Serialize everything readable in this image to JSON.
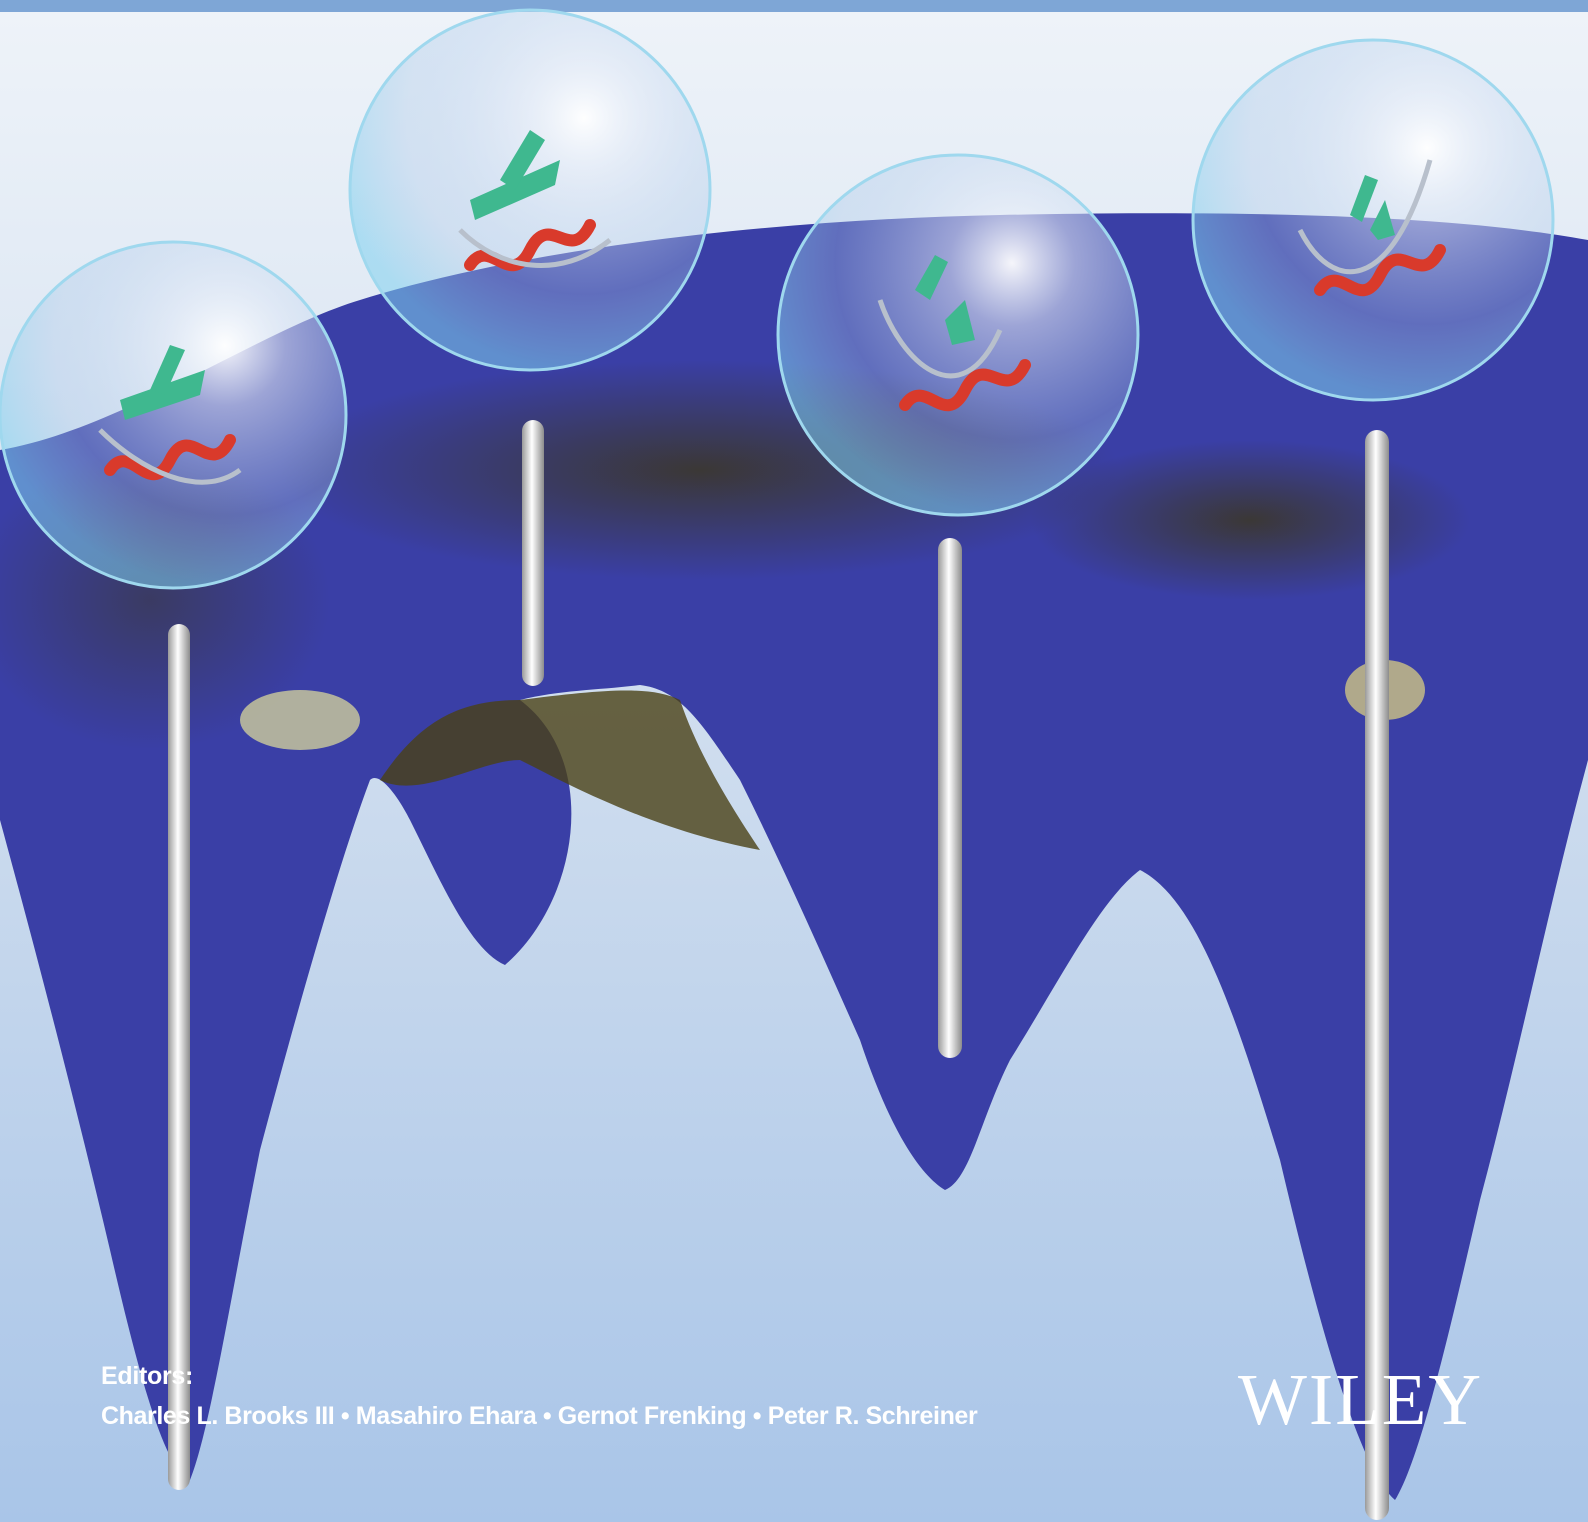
{
  "colors": {
    "top_bar": "#7ea6d6",
    "background_top": "#e9eff7",
    "background_bottom": "#a9c5e8",
    "surface_yellow": "#e2c81c",
    "surface_dark": "#3d3a12",
    "surface_green": "#8cc63f",
    "surface_cyan": "#18b7d3",
    "surface_blue": "#1f3f8a",
    "rod": "#f4f4f4",
    "helix": "#d93a2b",
    "strand": "#3fb88f",
    "coil": "#b8c0cc",
    "text": "#ffffff"
  },
  "cover": {
    "editors_heading": "Editors:",
    "editors_names": "Charles L. Brooks III • Masahiro Ehara • Gernot Frenking • Peter R. Schreiner",
    "publisher": "WILEY"
  }
}
